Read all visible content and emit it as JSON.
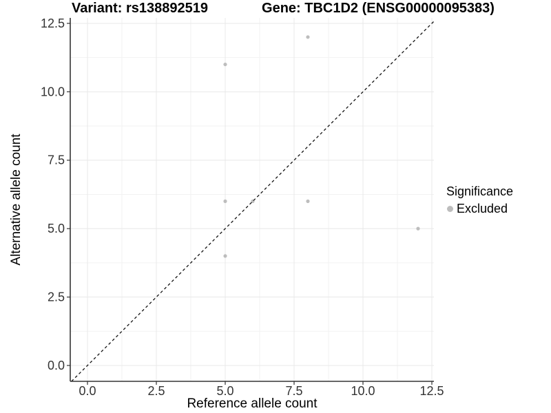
{
  "titles": {
    "left": "Variant: rs138892519",
    "right": "Gene: TBC1D2 (ENSG00000095383)"
  },
  "legend": {
    "title": "Significance",
    "items": [
      {
        "label": "Excluded",
        "color": "#bdbdbd"
      }
    ]
  },
  "chart_data": {
    "type": "scatter",
    "title": "Variant: rs138892519 — Gene: TBC1D2 (ENSG00000095383)",
    "xlabel": "Reference allele count",
    "ylabel": "Alternative allele count",
    "xlim": [
      0,
      12.5
    ],
    "ylim": [
      0,
      12.5
    ],
    "x_ticks": [
      0,
      2.5,
      5,
      7.5,
      10,
      12.5
    ],
    "y_ticks": [
      0,
      2.5,
      5,
      7.5,
      10,
      12.5
    ],
    "x_tick_labels": [
      "0.0",
      "2.5",
      "5.0",
      "7.5",
      "10.0",
      "12.5"
    ],
    "y_tick_labels": [
      "0.0",
      "2.5",
      "5.0",
      "7.5",
      "10.0",
      "12.5"
    ],
    "grid": "major+minor",
    "legend_position": "right-middle",
    "series": [
      {
        "name": "Excluded",
        "color": "#bdbdbd",
        "points": [
          [
            5,
            4
          ],
          [
            5,
            6
          ],
          [
            5,
            11
          ],
          [
            6,
            6
          ],
          [
            8,
            6
          ],
          [
            8,
            12
          ],
          [
            12,
            5
          ]
        ]
      }
    ],
    "reference_line": {
      "type": "identity",
      "style": "dashed",
      "color": "#111111"
    }
  },
  "colors": {
    "background": "#ffffff",
    "axis_line": "#333333",
    "tick_text": "#333333",
    "grid_major": "#e8e8e8",
    "grid_minor": "#f2f2f2",
    "point": "#bdbdbd"
  }
}
